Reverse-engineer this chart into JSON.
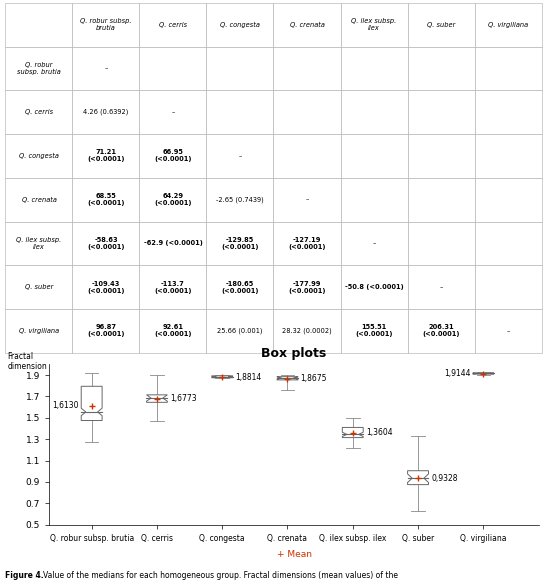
{
  "title": "Box plots",
  "ylabel_line1": "Fractal",
  "ylabel_line2": "dimension",
  "xlabel_bottom": "+ Mean",
  "categories": [
    "Q. robur subsp. brutia",
    "Q. cerris",
    "Q. congesta",
    "Q. crenata",
    "Q. ilex subsp. ilex",
    "Q. suber",
    "Q. virgiliana"
  ],
  "medians": [
    1.555,
    1.685,
    1.882,
    1.872,
    1.345,
    0.935,
    1.915
  ],
  "means": [
    1.613,
    1.6773,
    1.8814,
    1.8675,
    1.3604,
    0.9328,
    1.9144
  ],
  "q1": [
    1.475,
    1.645,
    1.875,
    1.855,
    1.315,
    0.875,
    1.909
  ],
  "q3": [
    1.795,
    1.715,
    1.893,
    1.885,
    1.41,
    1.005,
    1.92
  ],
  "whisker_low": [
    1.27,
    1.47,
    1.868,
    1.76,
    1.22,
    0.625,
    1.905
  ],
  "whisker_high": [
    1.92,
    1.9,
    1.905,
    1.905,
    1.5,
    1.33,
    1.926
  ],
  "notch_low": [
    1.52,
    1.655,
    1.878,
    1.862,
    1.325,
    0.895,
    1.912
  ],
  "notch_high": [
    1.59,
    1.715,
    1.886,
    1.882,
    1.365,
    0.975,
    1.918
  ],
  "mean_labels": [
    "1,6130",
    "1,6773",
    "1,8814",
    "1,8675",
    "1,3604",
    "0,9328",
    "1,9144"
  ],
  "label_side": [
    "left",
    "right",
    "right",
    "right",
    "right",
    "right",
    "left"
  ],
  "ylim": [
    0.5,
    2.0
  ],
  "yticks": [
    0.5,
    0.7,
    0.9,
    1.1,
    1.3,
    1.5,
    1.7,
    1.9
  ],
  "box_edge_color": "#666666",
  "median_color": "#666666",
  "whisker_color": "#888888",
  "mean_color": "#cc3300",
  "background_color": "white",
  "table_header_cols": [
    "Q. robur subsp.\nbrutia",
    "Q. cerris",
    "Q. congesta",
    "Q. crenata",
    "Q. ilex subsp.\nilex",
    "Q. suber",
    "Q. virgiliana"
  ],
  "table_row_headers": [
    "Q. robur\nsubsp. brutia",
    "Q. cerris",
    "Q. congesta",
    "Q. crenata",
    "Q. ilex subsp.\nilex",
    "Q. suber",
    "Q. virgiliana"
  ],
  "table_data": [
    [
      "–",
      "",
      "",
      "",
      "",
      "",
      ""
    ],
    [
      "4.26 (0.6392)",
      "–",
      "",
      "",
      "",
      "",
      ""
    ],
    [
      "71.21\n(<0.0001)",
      "66.95\n(<0.0001)",
      "–",
      "",
      "",
      "",
      ""
    ],
    [
      "68.55\n(<0.0001)",
      "64.29\n(<0.0001)",
      "-2.65 (0.7439)",
      "–",
      "",
      "",
      ""
    ],
    [
      "-58.63\n(<0.0001)",
      "-62.9 (<0.0001)",
      "-129.85\n(<0.0001)",
      "-127.19\n(<0.0001)",
      "–",
      "",
      ""
    ],
    [
      "-109.43\n(<0.0001)",
      "-113.7\n(<0.0001)",
      "-180.65\n(<0.0001)",
      "-177.99\n(<0.0001)",
      "-50.8 (<0.0001)",
      "–",
      ""
    ],
    [
      "96.87\n(<0.0001)",
      "92.61\n(<0.0001)",
      "25.66 (0.001)",
      "28.32 (0.0002)",
      "155.51\n(<0.0001)",
      "206.31\n(<0.0001)",
      "–"
    ]
  ]
}
